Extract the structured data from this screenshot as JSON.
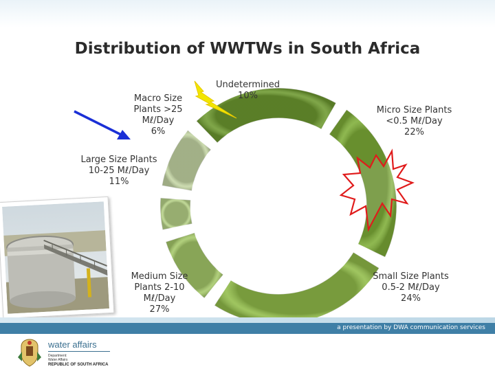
{
  "slide": {
    "title": "Distribution of WWTWs in South Africa",
    "credit": "a presentation by DWA communication services",
    "department": {
      "name": "water affairs",
      "line1": "Department:",
      "line2": "Water Affairs",
      "country": "REPUBLIC OF SOUTH AFRICA"
    }
  },
  "chart_data": {
    "type": "pie",
    "title": "Distribution of WWTWs in South Africa",
    "unit": "%",
    "segments": [
      {
        "lines": [
          "Undetermined",
          "10%"
        ],
        "value": 10,
        "color": "#c5d6a5"
      },
      {
        "lines": [
          "Micro Size Plants",
          "<0.5 Mℓ/Day",
          "22%"
        ],
        "value": 22,
        "color": "#6e9a30"
      },
      {
        "lines": [
          "Small Size Plants",
          "0.5-2 Mℓ/Day",
          "24%"
        ],
        "value": 24,
        "color": "#7fae38"
      },
      {
        "lines": [
          "Medium Size",
          "Plants 2-10",
          "Mℓ/Day",
          "27%"
        ],
        "value": 27,
        "color": "#92bd4a"
      },
      {
        "lines": [
          "Large Size Plants",
          "10-25  Mℓ/Day",
          "11%"
        ],
        "value": 11,
        "color": "#a6c96a"
      },
      {
        "lines": [
          "Macro Size",
          "Plants >25",
          "Mℓ/Day",
          "6%"
        ],
        "value": 6,
        "color": "#b8d389"
      }
    ]
  },
  "colors": {
    "ring_gradient_light": "#d6e6b4",
    "ring_gradient_dark": "#5e8a26",
    "arrow": "#1a2fd6",
    "lightning": "#f2e600",
    "burst": "#e01b1b",
    "footer_band": "#3f7fa6"
  },
  "icons": [
    "blue-arrow-icon",
    "lightning-icon",
    "starburst-icon",
    "coat-of-arms-icon"
  ]
}
